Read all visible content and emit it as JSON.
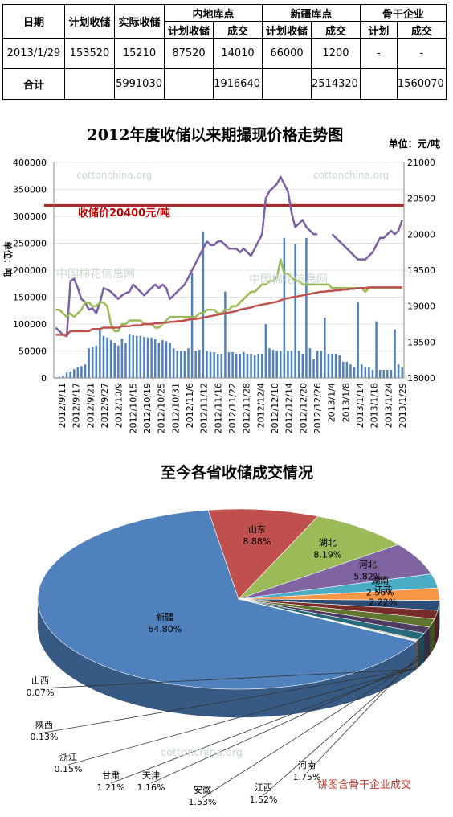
{
  "table": {
    "h_date": "日期",
    "h_plan": "计划收储",
    "h_actual": "实际收储",
    "h_inland": "内地库点",
    "h_xj": "新疆库点",
    "h_key": "骨干企业",
    "sub_plan": "计划收储",
    "sub_deal": "成交",
    "sub_plan2": "计划",
    "rows": [
      [
        "2013/1/29",
        "153520",
        "15210",
        "87520",
        "14010",
        "66000",
        "1200",
        "-",
        "-"
      ],
      [
        "合计",
        "",
        "5991030",
        "",
        "1916640",
        "",
        "2514320",
        "",
        "1560070"
      ]
    ]
  },
  "watermarks": {
    "w1": "cottonchina.org",
    "w2": "中国棉花信息网"
  },
  "chart_data": [
    {
      "type": "bar+line",
      "title": "2012年度收储以来期撮现价格走势图",
      "unit_label": "单位：元/吨",
      "ylabel": "单位：吨",
      "annotation": "收储价20400元/吨",
      "ylim": [
        0,
        400000
      ],
      "y2lim": [
        18000,
        21000
      ],
      "yticks": [
        0,
        50000,
        100000,
        150000,
        200000,
        250000,
        300000,
        350000,
        400000
      ],
      "y2ticks": [
        18000,
        18500,
        19000,
        19500,
        20000,
        20500,
        21000
      ],
      "xticklabels": [
        "2012/9/11",
        "2012/9/17",
        "2012/9/21",
        "2012/9/27",
        "2012/10/9",
        "2012/10/15",
        "2012/10/19",
        "2012/10/25",
        "2012/10/31",
        "2012/11/6",
        "2012/11/12",
        "2012/11/16",
        "2012/11/22",
        "2012/11/28",
        "2012/12/4",
        "2012/12/10",
        "2012/12/14",
        "2012/12/20",
        "2012/12/26",
        "2013/1/4",
        "2013/1/8",
        "2013/1/14",
        "2013/1/18",
        "2013/1/24",
        "2013/1/29"
      ],
      "reference_line": 20400,
      "bars": [
        1000,
        2000,
        4000,
        10000,
        12000,
        16000,
        20000,
        22000,
        25000,
        55000,
        57000,
        60000,
        88000,
        78000,
        75000,
        70000,
        65000,
        60000,
        73000,
        65000,
        82000,
        80000,
        78000,
        78000,
        76000,
        75000,
        75000,
        72000,
        65000,
        70000,
        68000,
        65000,
        55000,
        50000,
        50000,
        50000,
        55000,
        195000,
        50000,
        52000,
        272000,
        50000,
        48000,
        48000,
        45000,
        45000,
        160000,
        48000,
        48000,
        45000,
        45000,
        48000,
        45000,
        45000,
        42000,
        45000,
        45000,
        100000,
        55000,
        52000,
        50000,
        50000,
        260000,
        50000,
        50000,
        248000,
        50000,
        45000,
        260000,
        55000,
        35000,
        50000,
        50000,
        112000,
        45000,
        45000,
        45000,
        42000,
        30000,
        30000,
        25000,
        20000,
        140000,
        25000,
        20000,
        20000,
        15000,
        105000,
        15000,
        15000,
        15000,
        15000,
        90000,
        25000,
        20000
      ],
      "series": [
        {
          "name": "purple",
          "color": "#7c5fa4",
          "values": [
            18700,
            18650,
            18600,
            18580,
            19350,
            19380,
            19250,
            19100,
            19050,
            18950,
            18970,
            18900,
            19050,
            19250,
            19230,
            19200,
            19150,
            19100,
            19150,
            19180,
            19200,
            19300,
            19250,
            19200,
            19150,
            19200,
            19250,
            19300,
            19250,
            19300,
            19250,
            19100,
            19150,
            19200,
            19250,
            19300,
            19400,
            19500,
            19600,
            19700,
            19800,
            19900,
            19850,
            19850,
            19900,
            19900,
            19850,
            19800,
            19800,
            19800,
            19750,
            19800,
            19750,
            19700,
            19800,
            19900,
            20000,
            20500,
            20600,
            20650,
            20700,
            20800,
            20700,
            20600,
            20300,
            20100,
            20150,
            20200,
            20100,
            20050,
            20000,
            20000,
            null,
            null,
            null,
            20000,
            19950,
            19900,
            19850,
            19800,
            19750,
            19700,
            19650,
            19650,
            19650,
            19700,
            19750,
            19850,
            19950,
            19950,
            20000,
            20050,
            20000,
            20050,
            20200
          ]
        },
        {
          "name": "green",
          "color": "#9bbb59",
          "values": [
            18950,
            18950,
            18900,
            18850,
            18900,
            18850,
            18900,
            18950,
            19050,
            19050,
            19000,
            19000,
            19050,
            19050,
            19000,
            18750,
            18650,
            18650,
            18750,
            18750,
            18800,
            18800,
            18800,
            18800,
            18750,
            18750,
            18750,
            18700,
            18700,
            18750,
            18800,
            18850,
            18850,
            18850,
            18850,
            18850,
            18850,
            18850,
            18850,
            18900,
            18900,
            18950,
            18950,
            18950,
            18900,
            18900,
            18950,
            18950,
            19000,
            19000,
            19050,
            19100,
            19150,
            19200,
            19200,
            19250,
            19300,
            19300,
            19350,
            19350,
            19400,
            19650,
            19450,
            19450,
            19400,
            19350,
            19350,
            19300,
            19300,
            19300,
            19300,
            19300,
            19300,
            19300,
            19300,
            19250,
            19250,
            19250,
            19250,
            19250,
            19250,
            19250,
            19250,
            19250,
            19200,
            19250,
            19250,
            19250,
            19250,
            19250,
            19250,
            19250,
            19250,
            19250,
            19250
          ]
        },
        {
          "name": "red",
          "color": "#c0504d",
          "values": [
            18600,
            18600,
            18600,
            18600,
            18650,
            18650,
            18650,
            18650,
            18650,
            18650,
            18680,
            18680,
            18680,
            18700,
            18700,
            18700,
            18700,
            18700,
            18720,
            18720,
            18720,
            18730,
            18730,
            18730,
            18750,
            18750,
            18750,
            18760,
            18760,
            18770,
            18770,
            18780,
            18780,
            18790,
            18790,
            18800,
            18810,
            18820,
            18820,
            18830,
            18840,
            18850,
            18860,
            18870,
            18880,
            18890,
            18900,
            18910,
            18920,
            18930,
            18950,
            18960,
            18970,
            18980,
            19000,
            19010,
            19020,
            19030,
            19040,
            19050,
            19060,
            19080,
            19100,
            19110,
            19120,
            19130,
            19140,
            19150,
            19160,
            19170,
            19180,
            19190,
            19200,
            19200,
            19210,
            19210,
            19220,
            19220,
            19230,
            19230,
            19240,
            19240,
            19250,
            19250,
            19250,
            19260,
            19260,
            19260,
            19260,
            19260,
            19260,
            19260,
            19260,
            19260,
            19260
          ]
        }
      ]
    },
    {
      "type": "pie",
      "title": "至今各省收储成交情况",
      "note": "饼图含骨干企业成交",
      "slices": [
        {
          "label": "新疆",
          "value": 64.8,
          "pct": "64.80%",
          "color": "#4f81bd"
        },
        {
          "label": "山东",
          "value": 8.88,
          "pct": "8.88%",
          "color": "#c0504d"
        },
        {
          "label": "湖北",
          "value": 8.19,
          "pct": "8.19%",
          "color": "#9bbb59"
        },
        {
          "label": "河北",
          "value": 5.82,
          "pct": "5.82%",
          "color": "#8064a2"
        },
        {
          "label": "湖南",
          "value": 2.56,
          "pct": "2.56%",
          "color": "#4bacc6"
        },
        {
          "label": "江苏",
          "value": 2.22,
          "pct": "2.22%",
          "color": "#f79646"
        },
        {
          "label": "河南",
          "value": 1.75,
          "pct": "1.75%",
          "color": "#2c4d75"
        },
        {
          "label": "江西",
          "value": 1.52,
          "pct": "1.52%",
          "color": "#772c2a"
        },
        {
          "label": "安徽",
          "value": 1.53,
          "pct": "1.53%",
          "color": "#5f7530"
        },
        {
          "label": "天津",
          "value": 1.16,
          "pct": "1.16%",
          "color": "#4d3b62"
        },
        {
          "label": "甘肃",
          "value": 1.21,
          "pct": "1.21%",
          "color": "#276a7c"
        },
        {
          "label": "浙江",
          "value": 0.15,
          "pct": "0.15%",
          "color": "#b65708"
        },
        {
          "label": "陕西",
          "value": 0.13,
          "pct": "0.13%",
          "color": "#729aca"
        },
        {
          "label": "山西",
          "value": 0.07,
          "pct": "0.07%",
          "color": "#cd7371"
        }
      ]
    }
  ]
}
